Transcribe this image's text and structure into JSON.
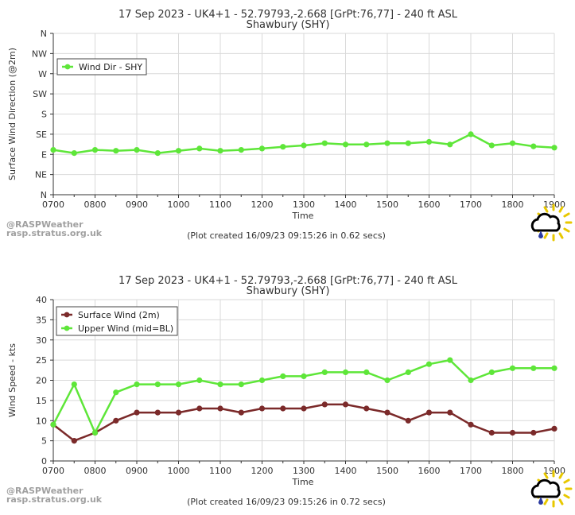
{
  "watermark": {
    "line1": "@RASPWeather",
    "line2": "rasp.stratus.org.uk"
  },
  "colors": {
    "green": "#5ee639",
    "maroon": "#7b2a2a",
    "grid": "#d9d9d9",
    "axis": "#333333",
    "text": "#333333",
    "watermark": "#a0a0a0"
  },
  "chart_data": [
    {
      "type": "line",
      "title": "17 Sep 2023 - UK4+1 - 52.79793,-2.668 [GrPt:76,77]  - 240 ft ASL",
      "subtitle": "Shawbury (SHY)",
      "xlabel": "Time",
      "ylabel": "Surface Wind Direction (@2m)",
      "footer": "(Plot created 16/09/23 09:15:26 in 0.62 secs)",
      "legend_position": "top-left",
      "x_ticks": [
        "0700",
        "0800",
        "0900",
        "1000",
        "1100",
        "1200",
        "1300",
        "1400",
        "1500",
        "1600",
        "1700",
        "1800",
        "1900"
      ],
      "y_ticks": [
        "N",
        "NE",
        "E",
        "SE",
        "S",
        "SW",
        "W",
        "NW",
        "N"
      ],
      "ylim": [
        0,
        360
      ],
      "x": [
        "0700",
        "0730",
        "0800",
        "0830",
        "0900",
        "0930",
        "1000",
        "1030",
        "1100",
        "1130",
        "1200",
        "1230",
        "1300",
        "1330",
        "1400",
        "1430",
        "1500",
        "1530",
        "1600",
        "1630",
        "1700",
        "1730",
        "1800",
        "1830",
        "1900"
      ],
      "series": [
        {
          "name": "Wind Dir - SHY",
          "color": "#5ee639",
          "values": [
            100,
            93,
            100,
            98,
            100,
            93,
            98,
            103,
            98,
            100,
            103,
            107,
            110,
            115,
            112,
            112,
            115,
            115,
            118,
            112,
            135,
            110,
            115,
            108,
            105
          ]
        }
      ]
    },
    {
      "type": "line",
      "title": "17 Sep 2023 - UK4+1 - 52.79793,-2.668 [GrPt:76,77]  - 240 ft ASL",
      "subtitle": "Shawbury (SHY)",
      "xlabel": "Time",
      "ylabel": "Wind Speed - kts",
      "footer": "(Plot created 16/09/23 09:15:26 in 0.72 secs)",
      "legend_position": "top-left",
      "x_ticks": [
        "0700",
        "0800",
        "0900",
        "1000",
        "1100",
        "1200",
        "1300",
        "1400",
        "1500",
        "1600",
        "1700",
        "1800",
        "1900"
      ],
      "y_ticks": [
        "0",
        "5",
        "10",
        "15",
        "20",
        "25",
        "30",
        "35",
        "40"
      ],
      "ylim": [
        0,
        40
      ],
      "x": [
        "0700",
        "0730",
        "0800",
        "0830",
        "0900",
        "0930",
        "1000",
        "1030",
        "1100",
        "1130",
        "1200",
        "1230",
        "1300",
        "1330",
        "1400",
        "1430",
        "1500",
        "1530",
        "1600",
        "1630",
        "1700",
        "1730",
        "1800",
        "1830",
        "1900"
      ],
      "series": [
        {
          "name": "Surface Wind (2m)",
          "color": "#7b2a2a",
          "values": [
            9,
            5,
            7,
            10,
            12,
            12,
            12,
            13,
            13,
            12,
            13,
            13,
            13,
            14,
            14,
            13,
            12,
            10,
            12,
            12,
            9,
            7,
            7,
            7,
            8
          ]
        },
        {
          "name": "Upper Wind (mid=BL)",
          "color": "#5ee639",
          "values": [
            9,
            19,
            7,
            17,
            19,
            19,
            19,
            20,
            19,
            19,
            20,
            21,
            21,
            22,
            22,
            22,
            20,
            22,
            24,
            25,
            20,
            22,
            23,
            23,
            23
          ]
        }
      ]
    }
  ]
}
